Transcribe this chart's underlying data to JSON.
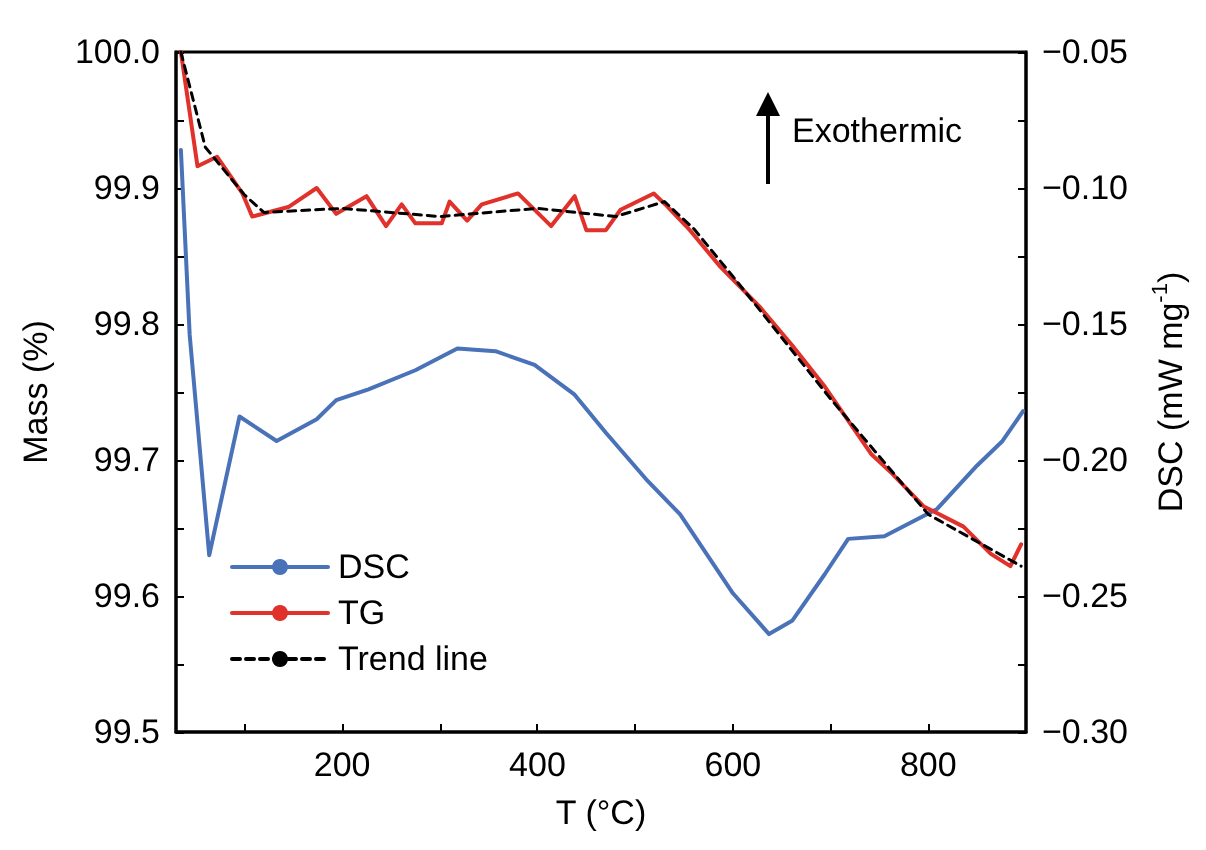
{
  "chart_data": {
    "type": "line",
    "xlabel": "T (°C)",
    "ylabel": "Mass (%)",
    "y2label": "DSC (mW mg$^{-1}$)",
    "annotations": [
      "Exothermic"
    ],
    "xlim": [
      30,
      900
    ],
    "xticks": [
      {
        "value": 100,
        "label": null
      },
      200,
      {
        "value": 300,
        "label": null
      },
      400,
      {
        "value": 500,
        "label": null
      },
      600,
      {
        "value": 700,
        "label": null
      },
      800
    ],
    "ylim": [
      99.5,
      100.0
    ],
    "yticks": [
      {
        "value": 99.5,
        "label": "99.5"
      },
      {
        "value": 99.55,
        "label": null
      },
      {
        "value": 99.6,
        "label": "99.6"
      },
      {
        "value": 99.65,
        "label": null
      },
      {
        "value": 99.7,
        "label": "99.7"
      },
      {
        "value": 99.75,
        "label": null
      },
      {
        "value": 99.8,
        "label": "99.8"
      },
      {
        "value": 99.85,
        "label": null
      },
      {
        "value": 99.9,
        "label": "99.9"
      },
      {
        "value": 99.95,
        "label": null
      },
      {
        "value": 100.0,
        "label": "100.0"
      }
    ],
    "y2lim": [
      -0.3,
      -0.05
    ],
    "y2ticks": [
      {
        "value": -0.3,
        "label": "−0.30"
      },
      {
        "value": -0.275,
        "label": null
      },
      {
        "value": -0.25,
        "label": "−0.25"
      },
      {
        "value": -0.225,
        "label": null
      },
      {
        "value": -0.2,
        "label": "−0.20"
      },
      {
        "value": -0.175,
        "label": null
      },
      {
        "value": -0.15,
        "label": "−0.15"
      },
      {
        "value": -0.125,
        "label": null
      },
      {
        "value": -0.1,
        "label": "−0.10"
      },
      {
        "value": -0.075,
        "label": null
      },
      {
        "value": -0.05,
        "label": "−0.05"
      }
    ],
    "grid": false,
    "legend": "bottom left",
    "marker": "none",
    "series": [
      {
        "name": "DSC",
        "color": "#4a72b8",
        "axis": "y2",
        "x": [
          35,
          44,
          64,
          95,
          133,
          174,
          194,
          227,
          275,
          318,
          357,
          397,
          438,
          470,
          511,
          546,
          600,
          637,
          661,
          694,
          718,
          755,
          809,
          850,
          876,
          897
        ],
        "values": [
          -0.086,
          -0.154,
          -0.235,
          -0.184,
          -0.193,
          -0.185,
          -0.178,
          -0.174,
          -0.167,
          -0.159,
          -0.16,
          -0.165,
          -0.176,
          -0.19,
          -0.207,
          -0.22,
          -0.249,
          -0.264,
          -0.259,
          -0.242,
          -0.229,
          -0.228,
          -0.218,
          -0.202,
          -0.193,
          -0.182
        ]
      },
      {
        "name": "TG",
        "color": "#e0312a",
        "x": [
          35,
          52,
          72,
          98,
          108,
          145,
          174,
          194,
          225,
          245,
          261,
          275,
          302,
          310,
          328,
          343,
          380,
          414,
          438,
          450,
          470,
          485,
          519,
          532,
          556,
          586,
          627,
          661,
          694,
          742,
          763,
          795,
          836,
          864,
          884,
          895
        ],
        "values": [
          100.0,
          99.916,
          99.923,
          99.896,
          99.879,
          99.886,
          99.9,
          99.881,
          99.894,
          99.872,
          99.888,
          99.874,
          99.874,
          99.89,
          99.876,
          99.888,
          99.896,
          99.872,
          99.894,
          99.869,
          99.869,
          99.884,
          99.896,
          99.887,
          99.869,
          99.843,
          99.813,
          99.784,
          99.754,
          99.704,
          99.69,
          99.666,
          99.651,
          99.631,
          99.622,
          99.638
        ]
      },
      {
        "name": "Trend line",
        "color": "#000000",
        "line_style": "dashed",
        "x": [
          35,
          60,
          100,
          120,
          200,
          300,
          400,
          480,
          530,
          560,
          600,
          700,
          800,
          850,
          895
        ],
        "values": [
          100.0,
          99.93,
          99.895,
          99.882,
          99.885,
          99.879,
          99.885,
          99.879,
          99.89,
          99.87,
          99.835,
          99.745,
          99.66,
          99.64,
          99.622
        ]
      }
    ]
  }
}
